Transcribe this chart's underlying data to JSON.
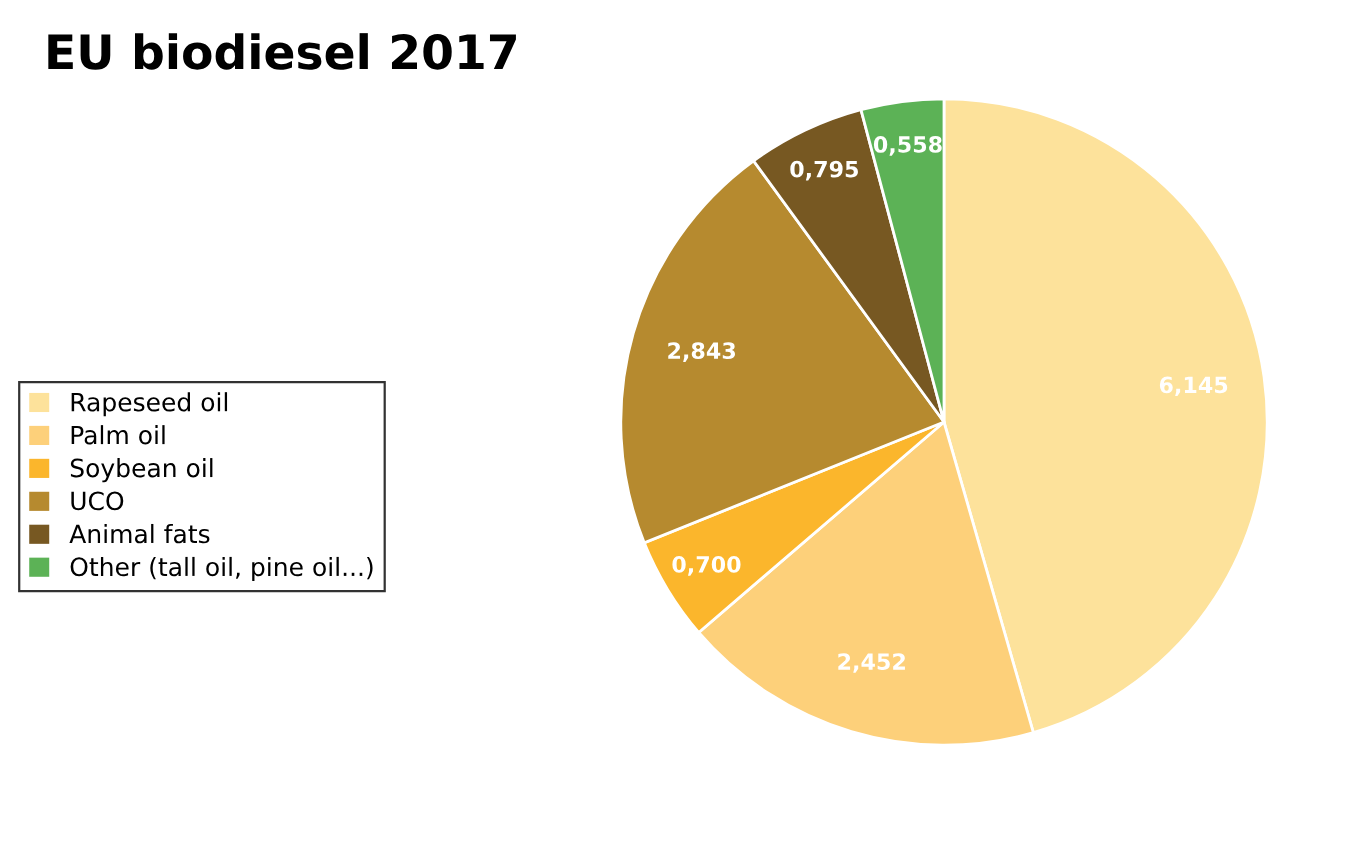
{
  "chart_data": {
    "type": "pie",
    "title": "EU biodiesel 2017",
    "categories": [
      "Rapeseed oil",
      "Palm oil",
      "Soybean oil",
      "UCO",
      "Animal fats",
      "Other (tall oil, pine oil...)"
    ],
    "values": [
      6.145,
      2.452,
      0.7,
      2.843,
      0.795,
      0.558
    ],
    "value_labels": [
      "6,145",
      "2,452",
      "0,700",
      "2,843",
      "0,795",
      "0,558"
    ],
    "colors": [
      "#fde29b",
      "#fdd07a",
      "#fbb62c",
      "#b68a2f",
      "#775822",
      "#5cb256"
    ],
    "legend": "left"
  }
}
